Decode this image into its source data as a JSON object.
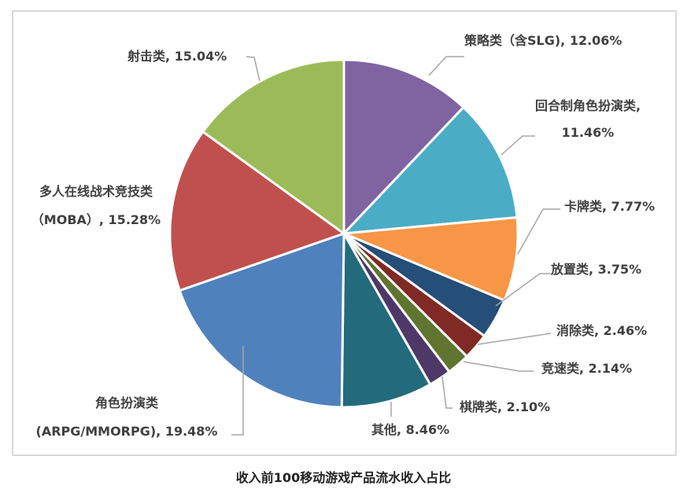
{
  "chart_data": {
    "type": "pie",
    "title": "收入前100移动游戏产品流水收入占比",
    "categories": [
      "策略类（含SLG)",
      "回合制角色扮演类",
      "卡牌类",
      "放置类",
      "消除类",
      "竞速类",
      "棋牌类",
      "其他",
      "角色扮演类(ARPG/MMORPG)",
      "多人在线战术竞技类（MOBA）",
      "射击类"
    ],
    "values": [
      12.06,
      11.46,
      7.77,
      3.75,
      2.46,
      2.14,
      2.1,
      8.46,
      19.48,
      15.28,
      15.04
    ],
    "unit": "%",
    "colors": [
      "#8064a2",
      "#4bacc6",
      "#f79646",
      "#254e78",
      "#7f2a25",
      "#5f7530",
      "#4d3867",
      "#236b7c",
      "#4f81bd",
      "#c0504d",
      "#9bbb59"
    ],
    "start_angle_deg": 0,
    "direction": "clockwise",
    "data_labels": "category, percentage",
    "legend": "none"
  },
  "labels": {
    "slg": "策略类（含SLG), 12.06%",
    "turn_rpg_1": "回合制角色扮演类,",
    "turn_rpg_2": "11.46%",
    "card": "卡牌类, 7.77%",
    "idle": "放置类, 3.75%",
    "match": "消除类, 2.46%",
    "racing": "竞速类, 2.14%",
    "chess": "棋牌类, 2.10%",
    "other": "其他, 8.46%",
    "rpg_1": "角色扮演类",
    "rpg_2": "(ARPG/MMORPG), 19.48%",
    "moba_1": "多人在线战术竞技类",
    "moba_2": "（MOBA）, 15.28%",
    "shooter": "射击类, 15.04%"
  },
  "caption": "收入前100移动游戏产品流水收入占比"
}
